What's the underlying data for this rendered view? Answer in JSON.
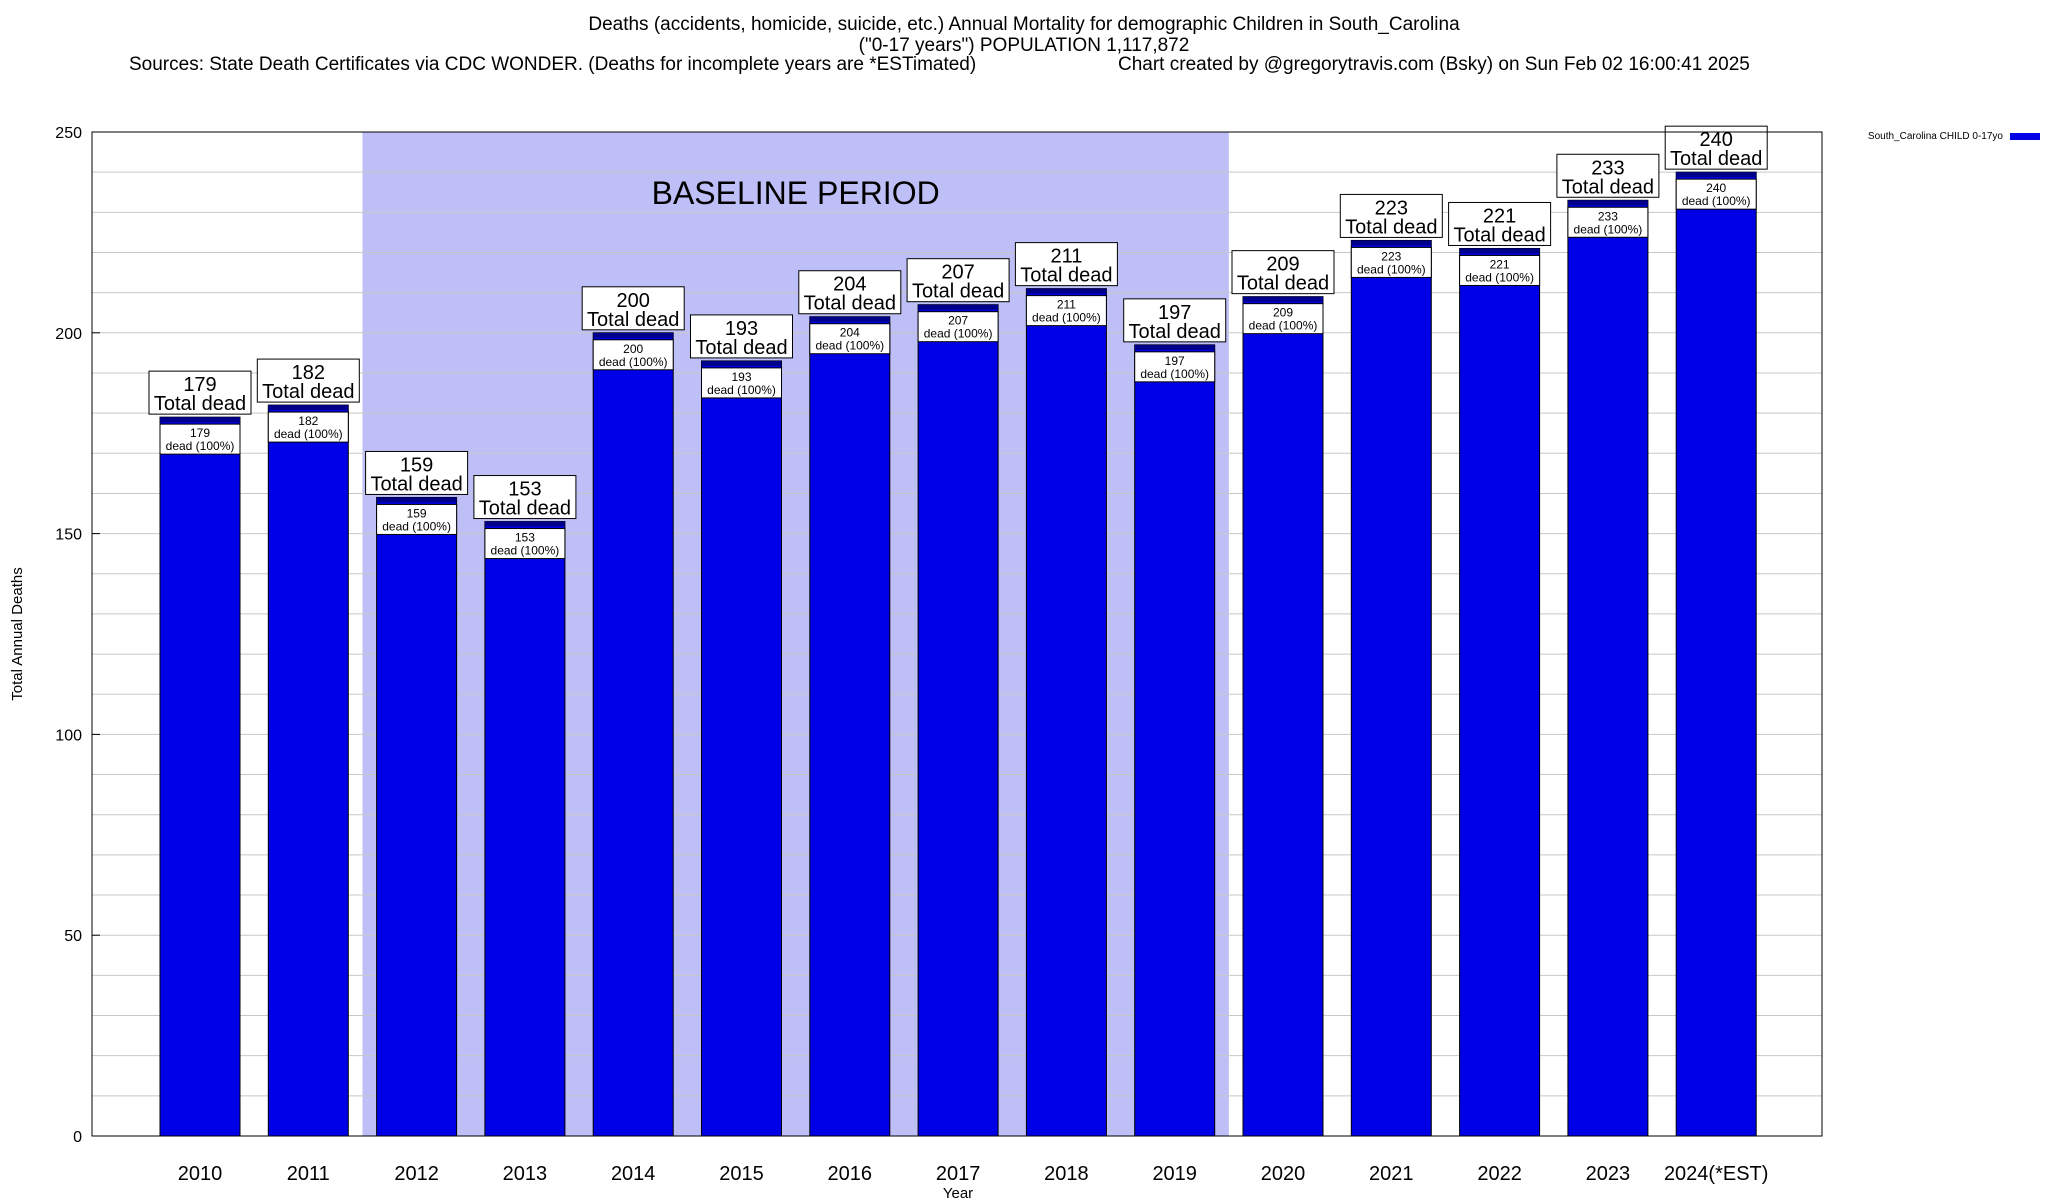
{
  "title": {
    "line1": "Deaths (accidents, homicide, suicide, etc.) Annual Mortality for demographic Children in South_Carolina",
    "line2": "(\"0-17 years\") POPULATION 1,117,872",
    "source": "Sources: State Death Certificates via CDC WONDER. (Deaths for incomplete years are *ESTimated)",
    "credit": "Chart created by @gregorytravis.com (Bsky) on Sun Feb 02 16:00:41 2025"
  },
  "chart_data": {
    "type": "bar",
    "categories": [
      "2010",
      "2011",
      "2012",
      "2013",
      "2014",
      "2015",
      "2016",
      "2017",
      "2018",
      "2019",
      "2020",
      "2021",
      "2022",
      "2023",
      "2024(*EST)"
    ],
    "series": [
      {
        "name": "South_Carolina CHILD 0-17yo",
        "values": [
          179,
          182,
          159,
          153,
          200,
          193,
          204,
          207,
          211,
          197,
          209,
          223,
          221,
          233,
          240
        ]
      }
    ],
    "xlabel": "Year",
    "ylabel": "Total Annual Deaths",
    "ylim": [
      0,
      250
    ],
    "yticks": [
      0,
      50,
      100,
      150,
      200,
      250
    ],
    "grid": true,
    "legend_position": "top-right",
    "baseline_period": {
      "label": "BASELINE PERIOD",
      "from": "2012",
      "to": "2019"
    },
    "label_top_suffix": "Total dead",
    "label_inner_suffix": "dead (100%)",
    "colors": {
      "bar": "#0000e6",
      "bar_cap": "#00008b",
      "baseline_shade": "#bfbff7",
      "grid": "#c8c8c8"
    }
  }
}
